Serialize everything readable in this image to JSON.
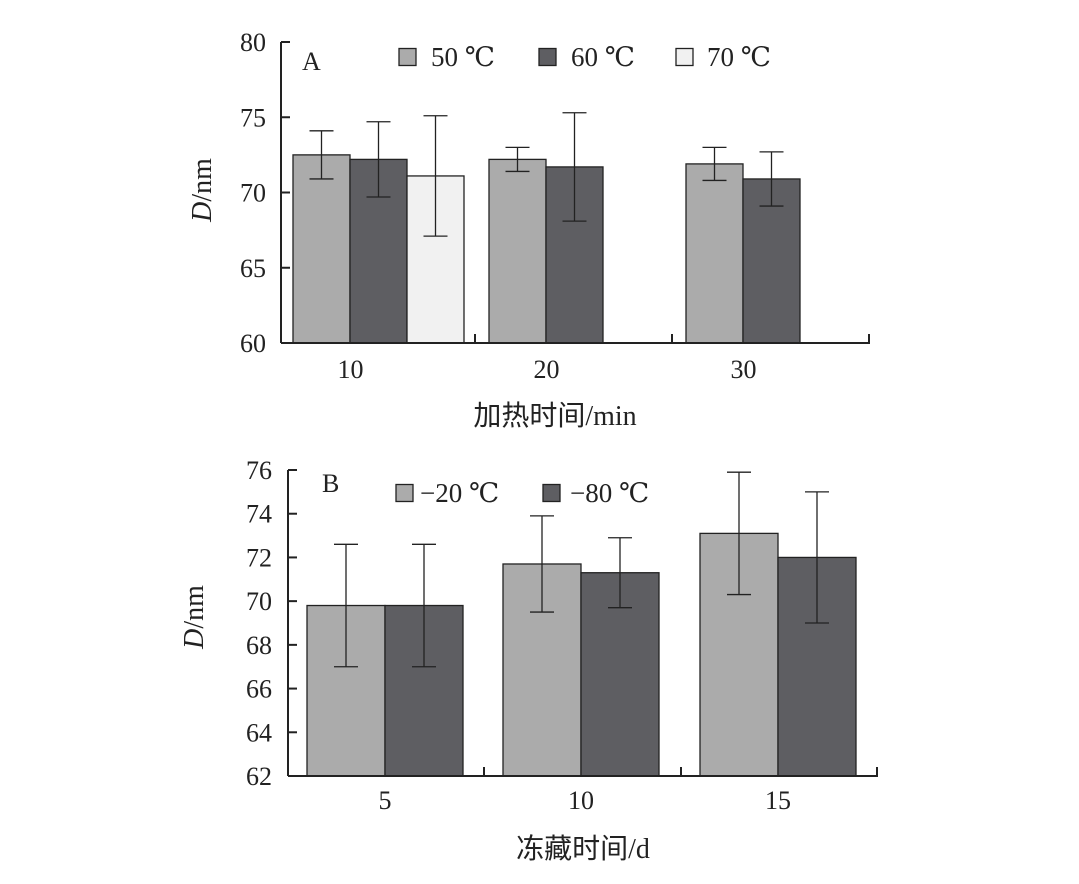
{
  "chart_data": [
    {
      "panel": "A",
      "type": "bar",
      "categories": [
        "10",
        "20",
        "30"
      ],
      "series": [
        {
          "name": "50 ℃",
          "values": [
            72.5,
            72.2,
            71.9
          ],
          "errors": [
            1.6,
            0.8,
            1.1
          ],
          "color": "#ababab"
        },
        {
          "name": "60 ℃",
          "values": [
            72.2,
            71.7,
            70.9
          ],
          "errors": [
            2.5,
            3.6,
            1.8
          ],
          "color": "#5e5e62"
        },
        {
          "name": "70 ℃",
          "values": [
            71.1,
            null,
            null
          ],
          "errors": [
            4.0,
            null,
            null
          ],
          "color": "#f1f1f1"
        }
      ],
      "xlabel": "加热时间/min",
      "ylabel_italic": "D",
      "ylabel_rest": "/nm",
      "ylim": [
        60,
        80
      ],
      "yticks": [
        "60",
        "65",
        "70",
        "75",
        "80"
      ],
      "legend_position": "top"
    },
    {
      "panel": "B",
      "type": "bar",
      "categories": [
        "5",
        "10",
        "15"
      ],
      "series": [
        {
          "name": "−20 ℃",
          "values": [
            69.8,
            71.7,
            73.1
          ],
          "errors": [
            2.8,
            2.2,
            2.8
          ],
          "color": "#ababab"
        },
        {
          "name": "−80 ℃",
          "values": [
            69.8,
            71.3,
            72.0
          ],
          "errors": [
            2.8,
            1.6,
            3.0
          ],
          "color": "#5e5e62"
        }
      ],
      "xlabel": "冻藏时间/d",
      "ylabel_italic": "D",
      "ylabel_rest": "/nm",
      "ylim": [
        62,
        76
      ],
      "yticks": [
        "62",
        "64",
        "66",
        "68",
        "70",
        "72",
        "74",
        "76"
      ],
      "legend_position": "top"
    }
  ]
}
